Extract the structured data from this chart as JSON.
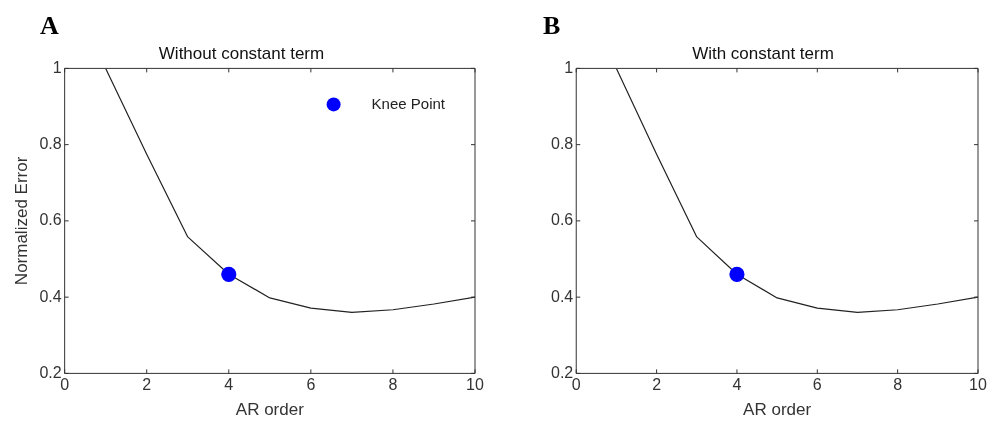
{
  "chart_data": [
    {
      "type": "line",
      "title": "Without constant term",
      "xlabel": "AR order",
      "ylabel": "Normalized Error",
      "annotations": [
        "A"
      ],
      "xlim": [
        0,
        10
      ],
      "xticks": [
        0,
        2,
        4,
        6,
        8,
        10
      ],
      "ylim": [
        0.2,
        1
      ],
      "yticks": [
        0.2,
        0.4,
        0.6,
        0.8,
        1
      ],
      "grid": false,
      "legend": "top right",
      "series": [
        {
          "color": "#222222",
          "marker": "none",
          "x": [
            1,
            2,
            3,
            4,
            5,
            6,
            7,
            8,
            9,
            10
          ],
          "values": [
            1.0,
            0.775,
            0.558,
            0.46,
            0.398,
            0.371,
            0.36,
            0.367,
            0.382,
            0.4
          ]
        },
        {
          "type": "scatter",
          "name": "Knee Point",
          "color": "#0000ff",
          "marker": "circle",
          "x": [
            4
          ],
          "values": [
            0.46
          ]
        }
      ]
    },
    {
      "type": "line",
      "title": "With constant term",
      "xlabel": "AR order",
      "annotations": [
        "B"
      ],
      "xlim": [
        0,
        10
      ],
      "xticks": [
        0,
        2,
        4,
        6,
        8,
        10
      ],
      "ylim": [
        0.2,
        1
      ],
      "yticks": [
        0.2,
        0.4,
        0.6,
        0.8,
        1
      ],
      "grid": false,
      "legend": false,
      "series": [
        {
          "color": "#222222",
          "marker": "none",
          "x": [
            1,
            2,
            3,
            4,
            5,
            6,
            7,
            8,
            9,
            10
          ],
          "values": [
            1.0,
            0.775,
            0.558,
            0.46,
            0.398,
            0.371,
            0.36,
            0.367,
            0.382,
            0.4
          ]
        },
        {
          "type": "scatter",
          "color": "#0000ff",
          "marker": "circle",
          "x": [
            4
          ],
          "values": [
            0.46
          ]
        }
      ]
    }
  ]
}
